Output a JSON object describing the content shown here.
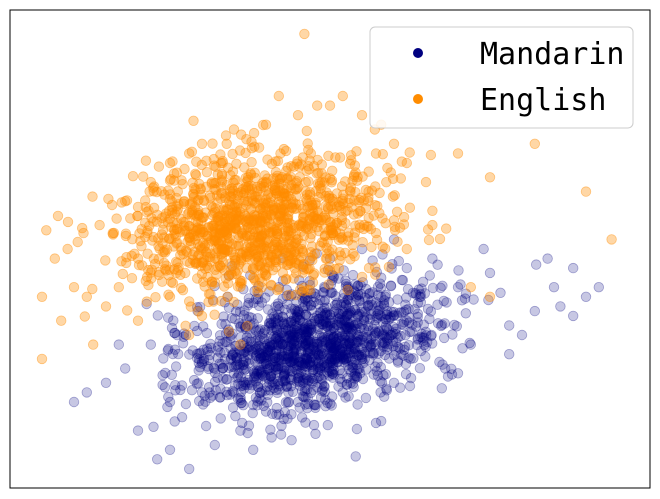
{
  "chart_data": {
    "type": "scatter",
    "title": "",
    "xlabel": "",
    "ylabel": "",
    "xlim": [
      0,
      100
    ],
    "ylim": [
      0,
      100
    ],
    "grid": false,
    "axis_ticks": false,
    "legend_placement": "top-right",
    "series": [
      {
        "name": "Mandarin",
        "color": "#000080",
        "alpha": 0.22,
        "cluster": {
          "center": [
            47,
            30
          ],
          "spread": [
            10,
            6
          ],
          "rotation_deg": 22,
          "count": 1400
        },
        "points": [
          [
            23,
            6
          ],
          [
            25,
            8
          ],
          [
            28,
            4
          ],
          [
            32,
            9
          ],
          [
            36,
            12
          ],
          [
            40,
            16
          ],
          [
            45,
            18
          ],
          [
            20,
            12
          ],
          [
            60,
            22
          ],
          [
            68,
            25
          ],
          [
            72,
            30
          ],
          [
            78,
            34
          ],
          [
            82,
            37
          ],
          [
            85,
            42
          ],
          [
            88,
            46
          ],
          [
            86,
            38
          ],
          [
            80,
            32
          ],
          [
            90,
            40
          ],
          [
            84,
            48
          ],
          [
            75,
            45
          ],
          [
            70,
            42
          ],
          [
            10,
            18
          ],
          [
            12,
            20
          ],
          [
            18,
            25
          ],
          [
            15,
            22
          ],
          [
            22,
            30
          ],
          [
            30,
            26
          ],
          [
            64,
            40
          ],
          [
            58,
            44
          ],
          [
            55,
            50
          ],
          [
            62,
            46
          ],
          [
            50,
            48
          ],
          [
            74,
            50
          ],
          [
            66,
            48
          ],
          [
            60,
            52
          ],
          [
            92,
            42
          ],
          [
            88,
            36
          ],
          [
            78,
            28
          ],
          [
            70,
            24
          ],
          [
            35,
            24
          ],
          [
            30,
            20
          ],
          [
            25,
            18
          ],
          [
            17,
            30
          ],
          [
            34,
            40
          ],
          [
            42,
            42
          ],
          [
            48,
            36
          ],
          [
            52,
            20
          ],
          [
            58,
            14
          ],
          [
            44,
            10
          ],
          [
            38,
            8
          ]
        ]
      },
      {
        "name": "English",
        "color": "#ff8c00",
        "alpha": 0.35,
        "cluster": {
          "center": [
            38,
            55
          ],
          "spread": [
            10,
            7
          ],
          "rotation_deg": 12,
          "count": 1200
        },
        "points": [
          [
            46,
            95
          ],
          [
            5,
            27
          ],
          [
            8,
            35
          ],
          [
            10,
            42
          ],
          [
            7,
            48
          ],
          [
            12,
            40
          ],
          [
            15,
            38
          ],
          [
            5,
            40
          ],
          [
            9,
            50
          ],
          [
            14,
            55
          ],
          [
            18,
            60
          ],
          [
            22,
            64
          ],
          [
            25,
            68
          ],
          [
            30,
            72
          ],
          [
            35,
            75
          ],
          [
            40,
            76
          ],
          [
            45,
            78
          ],
          [
            50,
            80
          ],
          [
            55,
            78
          ],
          [
            58,
            76
          ],
          [
            60,
            72
          ],
          [
            62,
            68
          ],
          [
            65,
            64
          ],
          [
            70,
            70
          ],
          [
            75,
            65
          ],
          [
            82,
            72
          ],
          [
            90,
            62
          ],
          [
            94,
            52
          ],
          [
            66,
            58
          ],
          [
            60,
            56
          ],
          [
            57,
            75
          ],
          [
            52,
            82
          ],
          [
            48,
            80
          ],
          [
            42,
            82
          ],
          [
            28,
            70
          ],
          [
            20,
            48
          ],
          [
            25,
            40
          ],
          [
            30,
            36
          ],
          [
            34,
            40
          ],
          [
            38,
            44
          ],
          [
            72,
            42
          ],
          [
            75,
            40
          ],
          [
            62,
            50
          ],
          [
            66,
            55
          ],
          [
            56,
            60
          ],
          [
            54,
            66
          ],
          [
            47,
            70
          ],
          [
            36,
            30
          ],
          [
            28,
            32
          ],
          [
            20,
            35
          ],
          [
            13,
            30
          ],
          [
            17,
            42
          ]
        ]
      }
    ]
  }
}
